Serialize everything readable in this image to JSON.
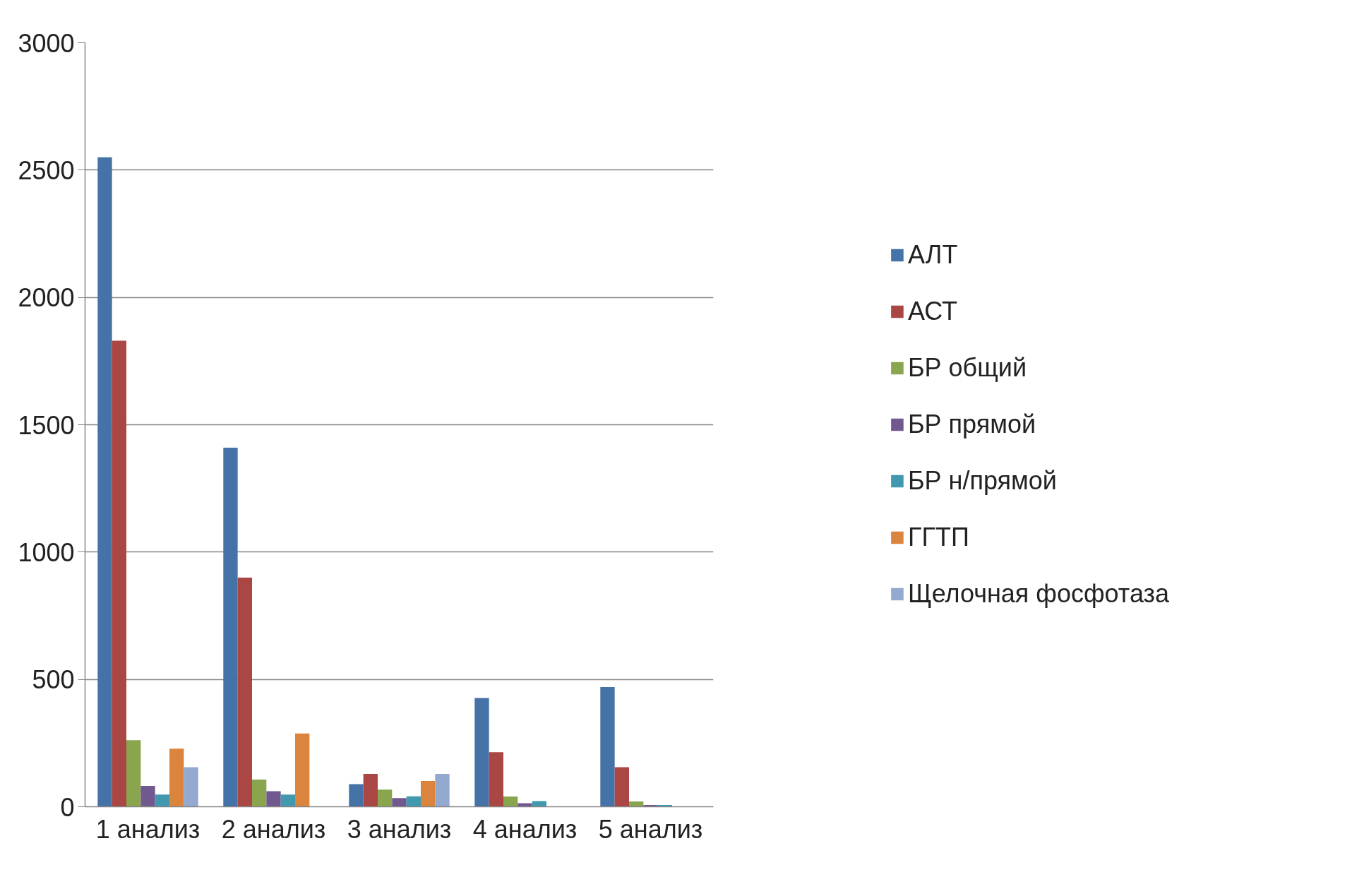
{
  "chart_data": {
    "type": "bar",
    "categories": [
      "1 анализ",
      "2 анализ",
      "3 анализ",
      "4 анализ",
      "5 анализ"
    ],
    "series": [
      {
        "name": "АЛТ",
        "color": "#4572a7",
        "values": [
          2550,
          1410,
          89,
          427,
          470
        ]
      },
      {
        "name": "АСТ",
        "color": "#aa4643",
        "values": [
          1830,
          900,
          129,
          214,
          155
        ]
      },
      {
        "name": "БР общий",
        "color": "#89a54e",
        "values": [
          261,
          107,
          67,
          40,
          21
        ]
      },
      {
        "name": "БР прямой",
        "color": "#71588f",
        "values": [
          82,
          61,
          34,
          14,
          7
        ]
      },
      {
        "name": "БР н/прямой",
        "color": "#4198af",
        "values": [
          48,
          48,
          41,
          22,
          7
        ]
      },
      {
        "name": "ГГТП",
        "color": "#db843d",
        "values": [
          228,
          288,
          101,
          null,
          null
        ]
      },
      {
        "name": "Щелочная фосфотаза",
        "color": "#93a9cf",
        "values": [
          155,
          null,
          129,
          null,
          null
        ]
      }
    ],
    "ylim": [
      0,
      3000
    ],
    "yticks": [
      0,
      500,
      1000,
      1500,
      2000,
      2500,
      3000
    ],
    "grid": "y",
    "legend": "right"
  }
}
